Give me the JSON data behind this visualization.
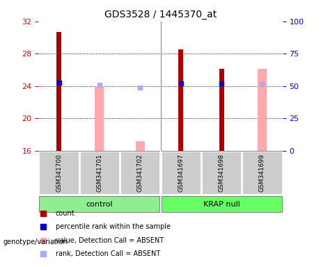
{
  "title": "GDS3528 / 1445370_at",
  "samples": [
    "GSM341700",
    "GSM341701",
    "GSM341702",
    "GSM341697",
    "GSM341698",
    "GSM341699"
  ],
  "groups": [
    "control",
    "control",
    "control",
    "KRAP null",
    "KRAP null",
    "KRAP null"
  ],
  "group_labels": [
    "control",
    "KRAP null"
  ],
  "group_colors": [
    "#90ee90",
    "#66ff66"
  ],
  "ylim_left": [
    16,
    32
  ],
  "ylim_right": [
    0,
    100
  ],
  "yticks_left": [
    16,
    20,
    24,
    28,
    32
  ],
  "yticks_right": [
    0,
    25,
    50,
    75,
    100
  ],
  "count_values": [
    30.7,
    null,
    null,
    28.5,
    26.1,
    null
  ],
  "count_color": "#aa0000",
  "percentile_values": [
    24.4,
    null,
    null,
    24.3,
    24.3,
    null
  ],
  "percentile_color": "#0000cc",
  "absent_value_values": [
    null,
    24.0,
    17.2,
    null,
    null,
    26.1
  ],
  "absent_value_color": "#ffaaaa",
  "absent_rank_values": [
    null,
    24.1,
    23.8,
    null,
    null,
    24.2
  ],
  "absent_rank_color": "#aaaaff",
  "bar_width": 0.35,
  "legend_items": [
    {
      "label": "count",
      "color": "#aa0000"
    },
    {
      "label": "percentile rank within the sample",
      "color": "#0000cc"
    },
    {
      "label": "value, Detection Call = ABSENT",
      "color": "#ffaaaa"
    },
    {
      "label": "rank, Detection Call = ABSENT",
      "color": "#aaaaff"
    }
  ],
  "background_color": "#ffffff",
  "plot_bg_color": "#ffffff",
  "grid_color": "#000000",
  "label_color_left": "#cc0000",
  "label_color_right": "#0000cc",
  "xticklabel_bg": "#cccccc"
}
